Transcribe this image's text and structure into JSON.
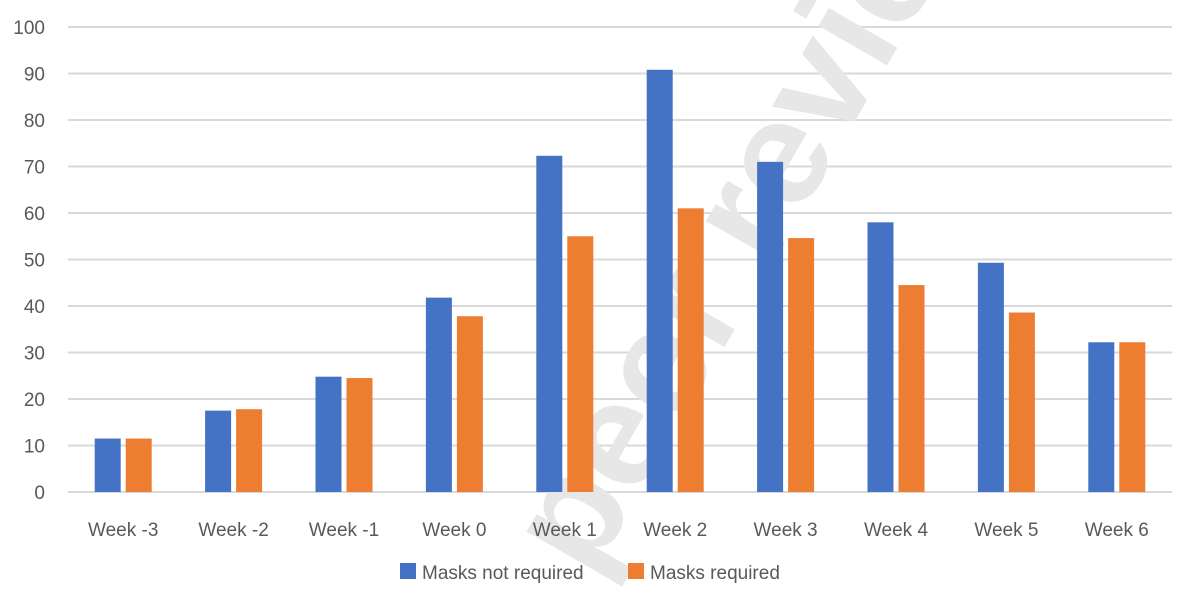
{
  "chart_data": {
    "type": "bar",
    "title": "",
    "xlabel": "",
    "ylabel": "",
    "categories": [
      "Week -3",
      "Week -2",
      "Week -1",
      "Week 0",
      "Week 1",
      "Week 2",
      "Week 3",
      "Week 4",
      "Week 5",
      "Week 6"
    ],
    "series": [
      {
        "name": "Masks not required",
        "color": "#4472C4",
        "values": [
          11.5,
          17.5,
          24.8,
          41.8,
          72.3,
          90.8,
          71.0,
          58.0,
          49.3,
          32.2
        ]
      },
      {
        "name": "Masks required",
        "color": "#ED7D31",
        "values": [
          11.5,
          17.8,
          24.5,
          37.8,
          55.0,
          61.0,
          54.6,
          44.5,
          38.6,
          32.2
        ]
      }
    ],
    "ylim": [
      0,
      100
    ],
    "yticks": [
      0,
      10,
      20,
      30,
      40,
      50,
      60,
      70,
      80,
      90,
      100
    ],
    "grid": true,
    "legend_position": "bottom-center"
  },
  "watermark": {
    "text": "peer review",
    "color": "#e7e7e7"
  }
}
